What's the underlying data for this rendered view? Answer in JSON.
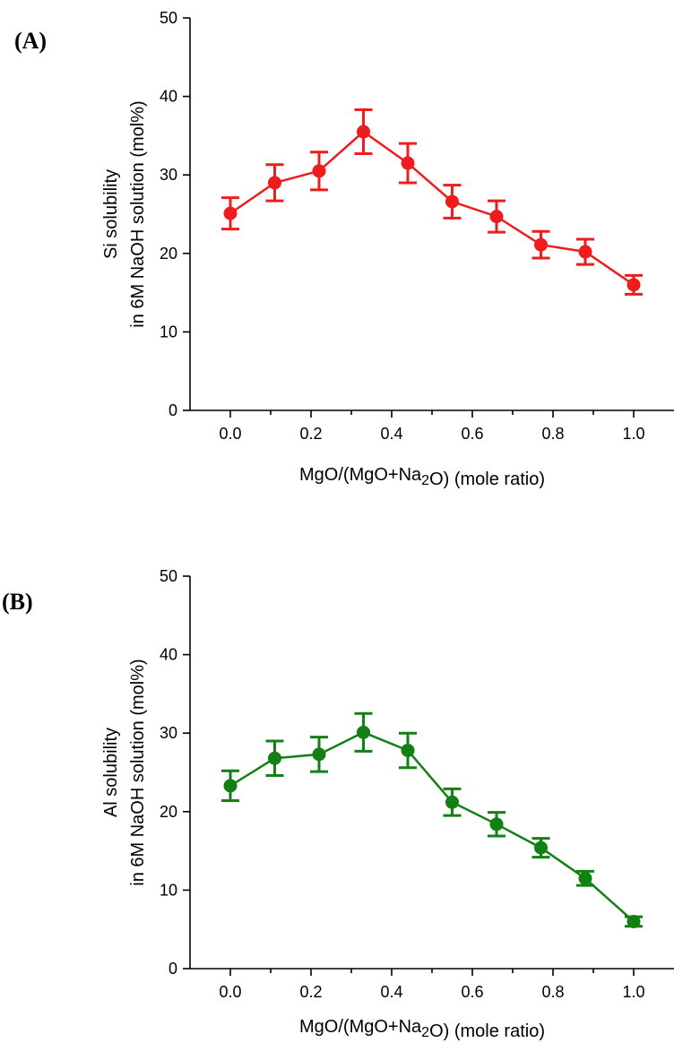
{
  "chart_data": [
    {
      "panel": "(A)",
      "type": "line",
      "xlabel": "MgO/(MgO+Na2O) (mole ratio)",
      "ylabel_line1": "Si solubility",
      "ylabel_line2": "in 6M NaOH solution (mol%)",
      "xlim": [
        -0.1,
        1.1
      ],
      "ylim": [
        0,
        50
      ],
      "x_ticks": [
        "0.0",
        "0.2",
        "0.4",
        "0.6",
        "0.8",
        "1.0"
      ],
      "y_ticks": [
        "0",
        "10",
        "20",
        "30",
        "40",
        "50"
      ],
      "color": "#ee1c1c",
      "x": [
        0.0,
        0.11,
        0.22,
        0.33,
        0.44,
        0.55,
        0.66,
        0.77,
        0.88,
        1.0
      ],
      "y": [
        25.1,
        29.0,
        30.5,
        35.5,
        31.5,
        26.6,
        24.7,
        21.1,
        20.2,
        16.0
      ],
      "err": [
        2.0,
        2.3,
        2.4,
        2.8,
        2.5,
        2.1,
        2.0,
        1.7,
        1.6,
        1.2
      ]
    },
    {
      "panel": "(B)",
      "type": "line",
      "xlabel": "MgO/(MgO+Na2O) (mole ratio)",
      "ylabel_line1": "Al solubility",
      "ylabel_line2": "in 6M NaOH solution (mol%)",
      "xlim": [
        -0.1,
        1.1
      ],
      "ylim": [
        0,
        50
      ],
      "x_ticks": [
        "0.0",
        "0.2",
        "0.4",
        "0.6",
        "0.8",
        "1.0"
      ],
      "y_ticks": [
        "0",
        "10",
        "20",
        "30",
        "40",
        "50"
      ],
      "color": "#128012",
      "x": [
        0.0,
        0.11,
        0.22,
        0.33,
        0.44,
        0.55,
        0.66,
        0.77,
        0.88,
        1.0
      ],
      "y": [
        23.3,
        26.8,
        27.3,
        30.1,
        27.8,
        21.2,
        18.4,
        15.4,
        11.5,
        6.0
      ],
      "err": [
        1.9,
        2.2,
        2.2,
        2.4,
        2.2,
        1.7,
        1.5,
        1.2,
        0.9,
        0.6
      ]
    }
  ]
}
